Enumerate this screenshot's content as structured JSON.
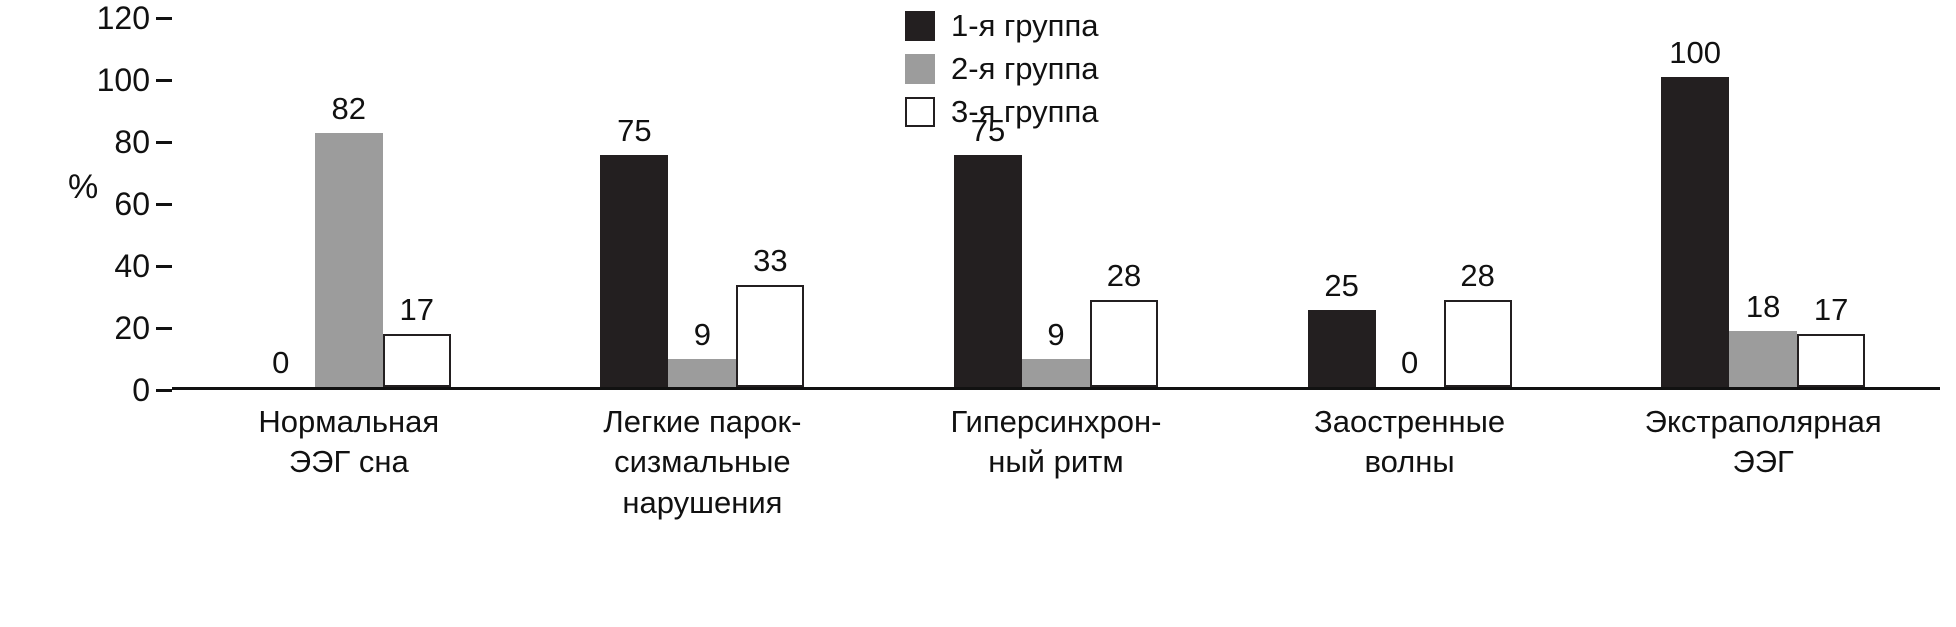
{
  "chart_data": {
    "type": "bar",
    "title": "",
    "ylabel": "%",
    "xlabel": "",
    "ylim": [
      0,
      120
    ],
    "yticks": [
      0,
      20,
      40,
      60,
      80,
      100,
      120
    ],
    "grid": false,
    "legend_position": "top",
    "categories": [
      "Нормальная\nЭЭГ сна",
      "Легкие парок-\nсизмальные\nнарушения",
      "Гиперсинхрон-\nный ритм",
      "Заостренные\nволны",
      "Экстраполярная\nЭЭГ"
    ],
    "series": [
      {
        "name": "1-я группа",
        "color": "#231f20",
        "bordered": false,
        "values": [
          0,
          75,
          75,
          25,
          100
        ]
      },
      {
        "name": "2-я группа",
        "color": "#9c9c9c",
        "bordered": false,
        "values": [
          82,
          9,
          9,
          0,
          18
        ]
      },
      {
        "name": "3-я группа",
        "color": "#ffffff",
        "bordered": true,
        "values": [
          17,
          33,
          28,
          28,
          17
        ]
      }
    ]
  }
}
